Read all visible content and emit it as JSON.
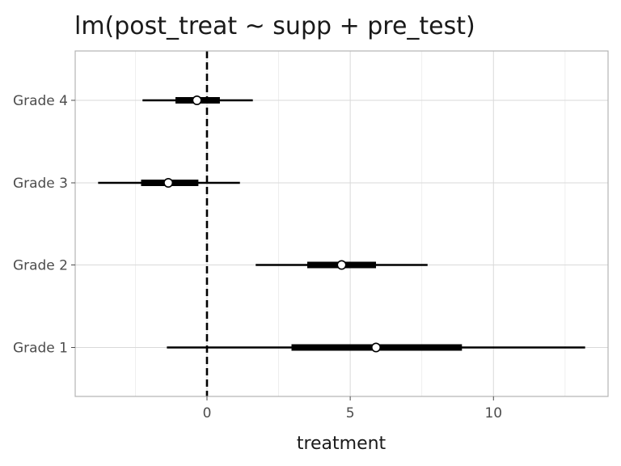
{
  "chart_data": {
    "type": "interval",
    "title": "lm(post_treat ~ supp + pre_test)",
    "xlabel": "treatment",
    "ylabel": "",
    "xlim": [
      -4.6,
      14.0
    ],
    "x_ticks": [
      0,
      5,
      10
    ],
    "x_tick_labels": [
      "0",
      "5",
      "10"
    ],
    "x_minor_ticks": [
      -2.5,
      2.5,
      7.5,
      12.5
    ],
    "reference_line": {
      "x": 0,
      "style": "dashed"
    },
    "grid": true,
    "categories": [
      "Grade 4",
      "Grade 3",
      "Grade 2",
      "Grade 1"
    ],
    "rows": [
      {
        "label": "Grade 4",
        "estimate": -0.35,
        "inner": [
          -1.1,
          0.45
        ],
        "outer": [
          -2.25,
          1.6
        ]
      },
      {
        "label": "Grade 3",
        "estimate": -1.35,
        "inner": [
          -2.3,
          -0.3
        ],
        "outer": [
          -3.8,
          1.15
        ]
      },
      {
        "label": "Grade 2",
        "estimate": 4.7,
        "inner": [
          3.5,
          5.9
        ],
        "outer": [
          1.7,
          7.7
        ]
      },
      {
        "label": "Grade 1",
        "estimate": 5.9,
        "inner": [
          2.95,
          8.9
        ],
        "outer": [
          -1.4,
          13.2
        ]
      }
    ]
  }
}
